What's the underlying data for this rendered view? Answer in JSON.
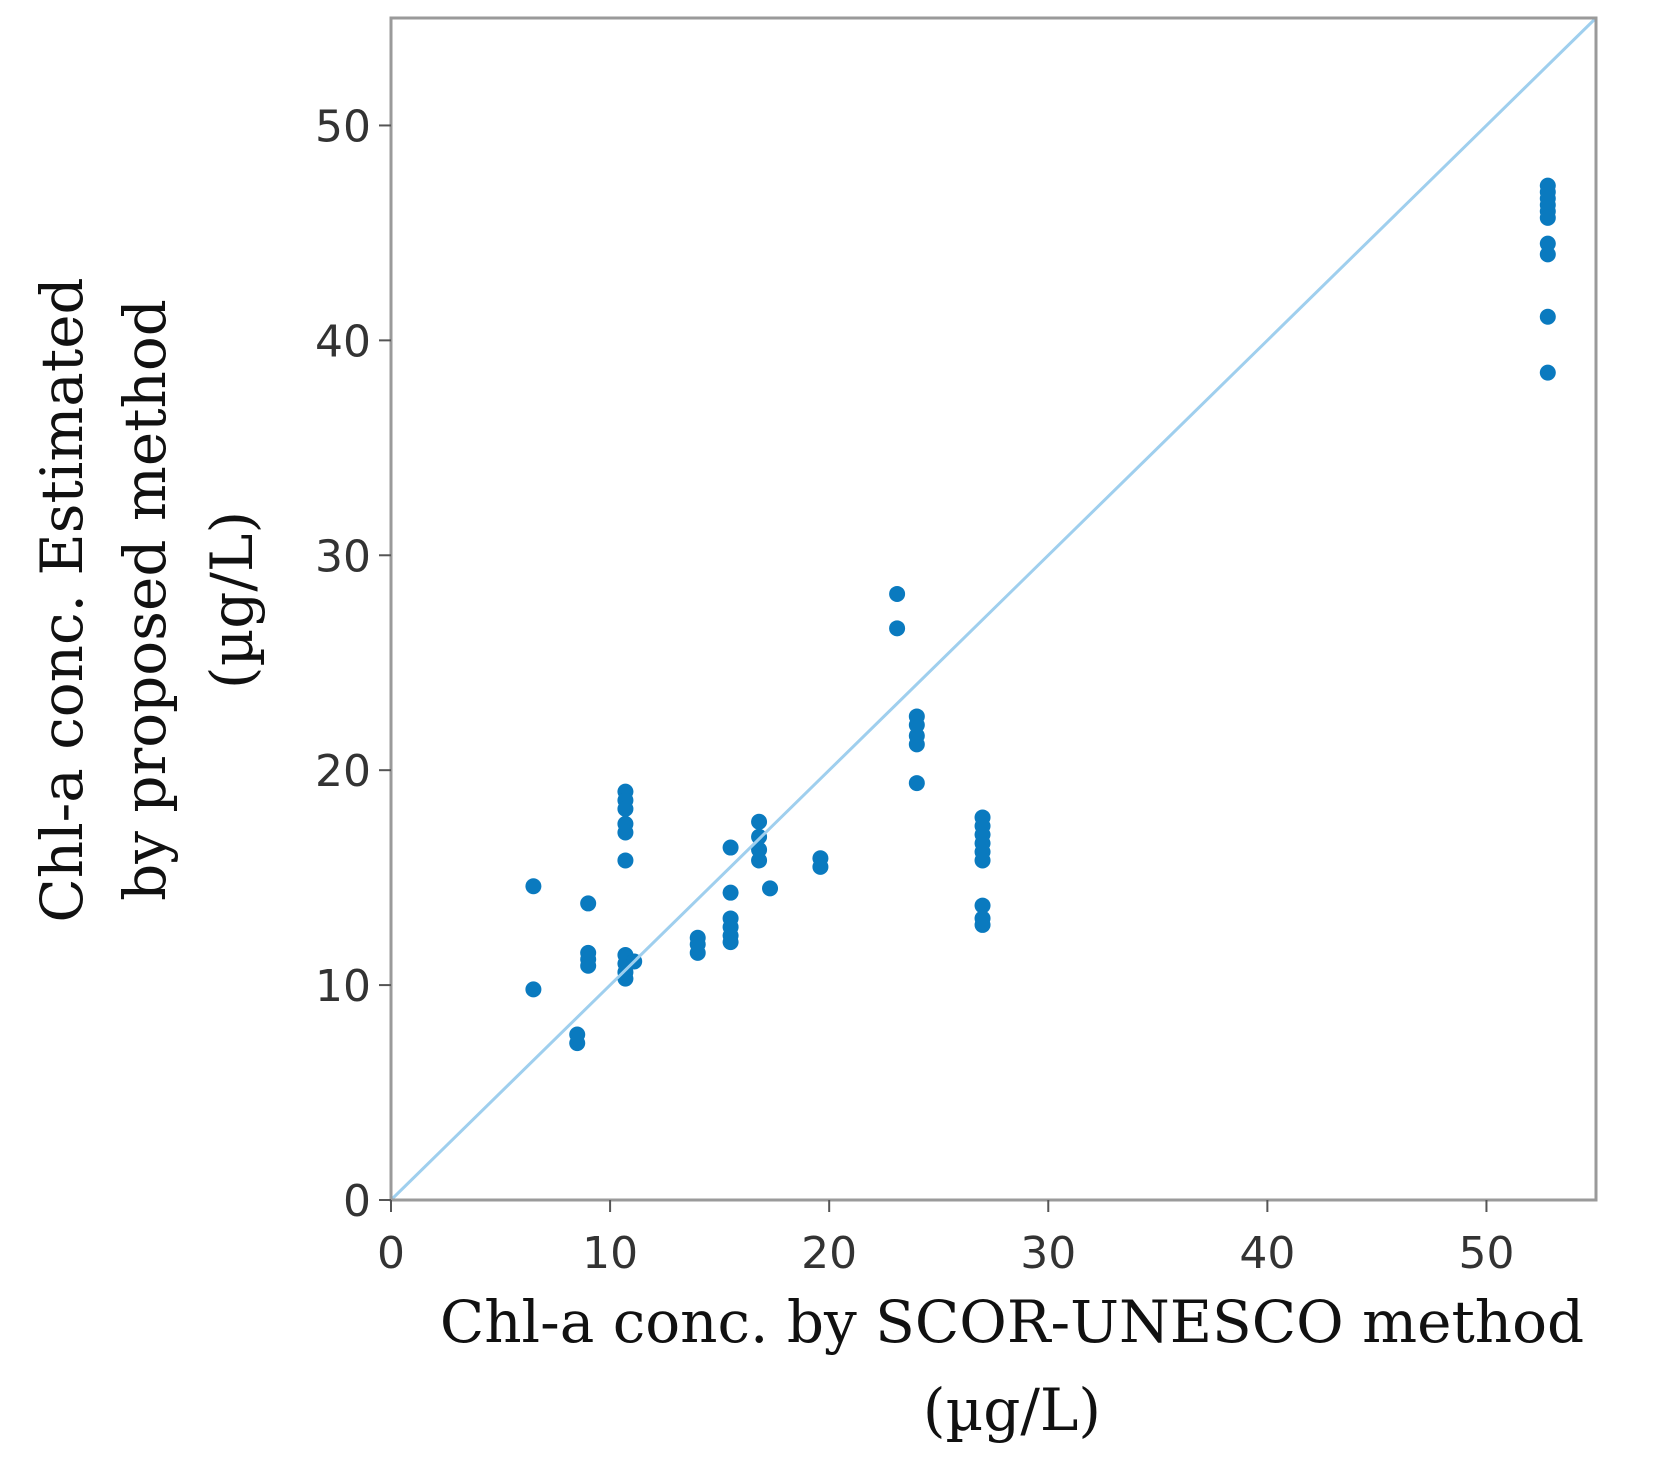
{
  "chart_data": {
    "type": "scatter",
    "title": "",
    "xlabel": [
      "Chl-a conc. by SCOR-UNESCO method",
      "(µg/L)"
    ],
    "ylabel": [
      "Chl-a conc. Estimated",
      "by proposed method",
      "(µg/L)"
    ],
    "xlim": [
      0,
      55
    ],
    "ylim": [
      0,
      55
    ],
    "xticks": [
      "0",
      "10",
      "20",
      "30",
      "40",
      "50"
    ],
    "yticks": [
      "0",
      "10",
      "20",
      "30",
      "40",
      "50"
    ],
    "grid": false,
    "legend": "none",
    "point_color": "#0a7abf",
    "reference_line": {
      "from": [
        0,
        0
      ],
      "to": [
        55,
        55
      ],
      "color": "#9fcfee",
      "label": "y = x"
    },
    "series": [
      {
        "points": [
          [
            6.5,
            14.6
          ],
          [
            6.5,
            9.8
          ],
          [
            8.5,
            7.7
          ],
          [
            8.5,
            7.3
          ],
          [
            9.0,
            13.8
          ],
          [
            9.0,
            11.5
          ],
          [
            9.0,
            11.2
          ],
          [
            9.0,
            10.9
          ],
          [
            10.7,
            19.0
          ],
          [
            10.7,
            18.6
          ],
          [
            10.7,
            18.2
          ],
          [
            10.7,
            17.5
          ],
          [
            10.7,
            17.1
          ],
          [
            10.7,
            15.8
          ],
          [
            10.7,
            11.4
          ],
          [
            10.7,
            11.0
          ],
          [
            10.7,
            10.6
          ],
          [
            10.7,
            10.3
          ],
          [
            11.1,
            11.1
          ],
          [
            14.0,
            12.2
          ],
          [
            14.0,
            11.9
          ],
          [
            14.0,
            11.5
          ],
          [
            15.5,
            16.4
          ],
          [
            15.5,
            14.3
          ],
          [
            15.5,
            13.1
          ],
          [
            15.5,
            12.7
          ],
          [
            15.5,
            12.3
          ],
          [
            15.5,
            12.0
          ],
          [
            16.8,
            17.6
          ],
          [
            16.8,
            16.9
          ],
          [
            16.8,
            16.3
          ],
          [
            16.8,
            15.8
          ],
          [
            17.3,
            14.5
          ],
          [
            19.6,
            15.9
          ],
          [
            19.6,
            15.5
          ],
          [
            23.1,
            28.2
          ],
          [
            23.1,
            26.6
          ],
          [
            24.0,
            22.5
          ],
          [
            24.0,
            22.1
          ],
          [
            24.0,
            21.6
          ],
          [
            24.0,
            21.2
          ],
          [
            24.0,
            19.4
          ],
          [
            27.0,
            17.8
          ],
          [
            27.0,
            17.4
          ],
          [
            27.0,
            17.0
          ],
          [
            27.0,
            16.6
          ],
          [
            27.0,
            16.2
          ],
          [
            27.0,
            15.8
          ],
          [
            27.0,
            13.7
          ],
          [
            27.0,
            13.1
          ],
          [
            27.0,
            12.8
          ],
          [
            52.8,
            47.2
          ],
          [
            52.8,
            46.9
          ],
          [
            52.8,
            46.6
          ],
          [
            52.8,
            46.3
          ],
          [
            52.8,
            46.0
          ],
          [
            52.8,
            45.7
          ],
          [
            52.8,
            44.5
          ],
          [
            52.8,
            44.0
          ],
          [
            52.8,
            41.1
          ],
          [
            52.8,
            38.5
          ]
        ]
      }
    ]
  }
}
